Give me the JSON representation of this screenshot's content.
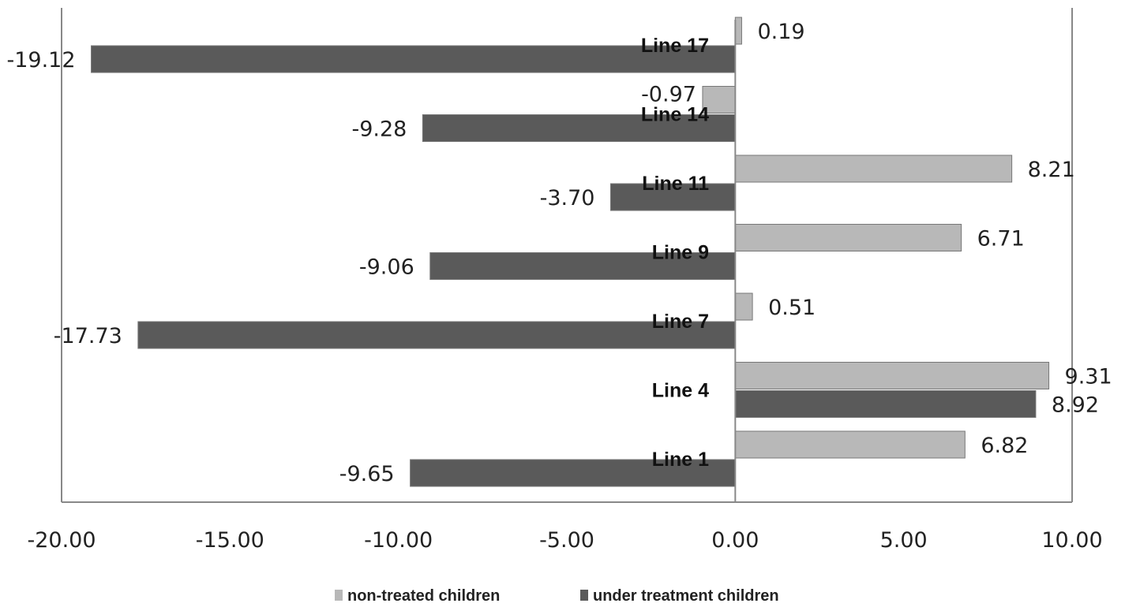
{
  "chart_data": {
    "type": "bar",
    "orientation": "horizontal",
    "categories": [
      "Line 17",
      "Line 14",
      "Line 11",
      "Line 9",
      "Line 7",
      "Line 4",
      "Line 1"
    ],
    "series": [
      {
        "name": "non-treated children",
        "color": "#b8b8b8",
        "values": [
          0.19,
          -0.97,
          8.21,
          6.71,
          0.51,
          9.31,
          6.82
        ],
        "labels": [
          "0.19",
          "-0.97",
          "8.21",
          "6.71",
          "0.51",
          "9.31",
          "6.82"
        ]
      },
      {
        "name": "under treatment children",
        "color": "#5a5a5a",
        "values": [
          -19.12,
          -9.28,
          -3.7,
          -9.06,
          -17.73,
          8.92,
          -9.65
        ],
        "labels": [
          "-19.12",
          "-9.28",
          "-3.70",
          "-9.06",
          "-17.73",
          "8.92",
          "-9.65"
        ]
      }
    ],
    "xlim": [
      -20,
      10
    ],
    "xticks": [
      "-20.00",
      "-15.00",
      "-10.00",
      "-5.00",
      "0.00",
      "5.00",
      "10.00"
    ],
    "xtick_values": [
      -20,
      -15,
      -10,
      -5,
      0,
      5,
      10
    ],
    "grid": false,
    "legend_position": "bottom"
  }
}
